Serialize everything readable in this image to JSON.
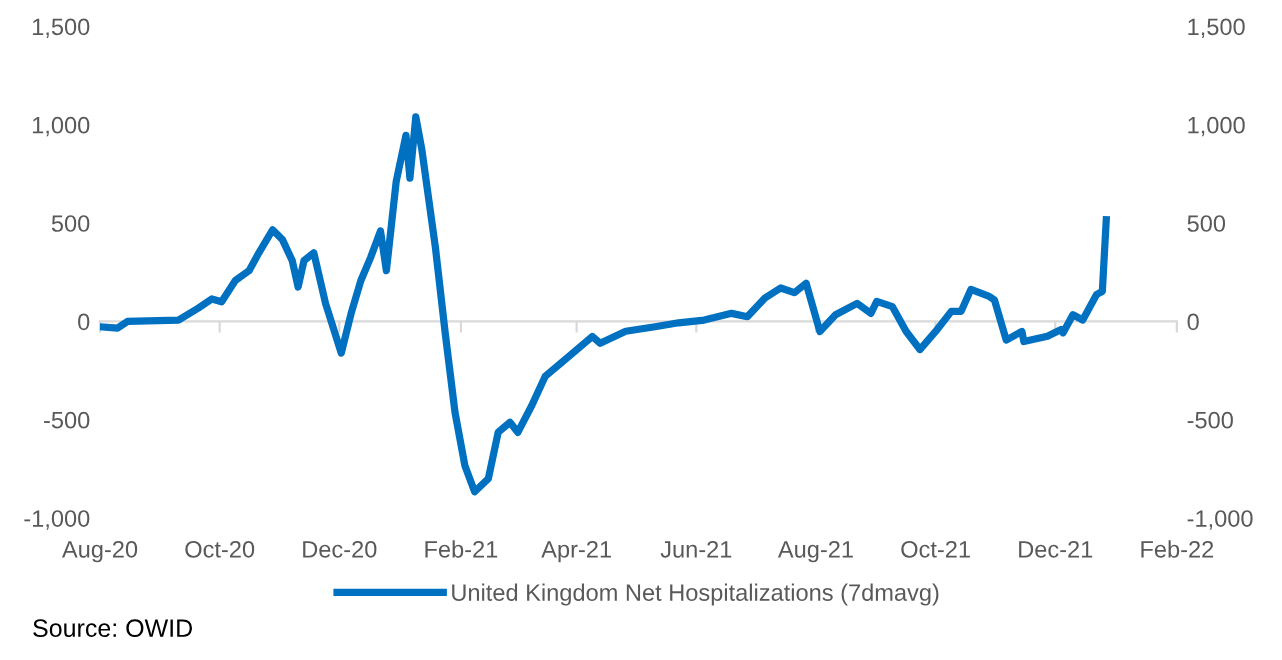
{
  "chart_data": {
    "type": "line",
    "x": [
      "2020-08-01",
      "2020-08-10",
      "2020-08-15",
      "2020-09-10",
      "2020-09-20",
      "2020-09-27",
      "2020-10-02",
      "2020-10-09",
      "2020-10-16",
      "2020-10-21",
      "2020-10-28",
      "2020-11-02",
      "2020-11-07",
      "2020-11-10",
      "2020-11-13",
      "2020-11-18",
      "2020-11-24",
      "2020-12-02",
      "2020-12-07",
      "2020-12-12",
      "2020-12-17",
      "2020-12-22",
      "2020-12-25",
      "2020-12-30",
      "2021-01-04",
      "2021-01-06",
      "2021-01-09",
      "2021-01-12",
      "2021-01-19",
      "2021-01-24",
      "2021-01-29",
      "2021-02-03",
      "2021-02-08",
      "2021-02-15",
      "2021-02-20",
      "2021-02-26",
      "2021-03-02",
      "2021-03-09",
      "2021-03-16",
      "2021-03-26",
      "2021-04-09",
      "2021-04-13",
      "2021-04-26",
      "2021-05-11",
      "2021-05-23",
      "2021-06-05",
      "2021-06-19",
      "2021-06-27",
      "2021-07-06",
      "2021-07-14",
      "2021-07-21",
      "2021-07-27",
      "2021-08-03",
      "2021-08-11",
      "2021-08-22",
      "2021-08-29",
      "2021-09-01",
      "2021-09-09",
      "2021-09-16",
      "2021-09-23",
      "2021-10-01",
      "2021-10-09",
      "2021-10-14",
      "2021-10-19",
      "2021-10-28",
      "2021-10-31",
      "2021-11-06",
      "2021-11-14",
      "2021-11-15",
      "2021-11-27",
      "2021-12-04",
      "2021-12-05",
      "2021-12-10",
      "2021-12-15",
      "2021-12-22",
      "2021-12-25",
      "2021-12-27"
    ],
    "series": [
      {
        "name": "United Kingdom Net Hospitalizations (7dmavg)",
        "color": "#0070c0",
        "values": [
          -27,
          -34,
          0,
          7,
          67,
          114,
          100,
          208,
          258,
          349,
          466,
          416,
          309,
          175,
          309,
          349,
          91,
          -161,
          40,
          208,
          326,
          460,
          258,
          711,
          946,
          728,
          1040,
          879,
          376,
          -60,
          -463,
          -732,
          -866,
          -799,
          -564,
          -513,
          -564,
          -430,
          -279,
          -195,
          -77,
          -111,
          -50,
          -27,
          -7,
          7,
          41,
          24,
          119,
          170,
          146,
          194,
          -51,
          34,
          92,
          41,
          102,
          75,
          -51,
          -143,
          -51,
          51,
          51,
          163,
          129,
          109,
          -95,
          -51,
          -102,
          -75,
          -41,
          -58,
          34,
          7,
          136,
          153,
          517
        ]
      }
    ],
    "xlim": [
      "2020-08-01",
      "2022-02-01"
    ],
    "xticks": [
      {
        "value": "2020-08-01",
        "label": "Aug-20"
      },
      {
        "value": "2020-10-01",
        "label": "Oct-20"
      },
      {
        "value": "2020-12-01",
        "label": "Dec-20"
      },
      {
        "value": "2021-02-01",
        "label": "Feb-21"
      },
      {
        "value": "2021-04-01",
        "label": "Apr-21"
      },
      {
        "value": "2021-06-01",
        "label": "Jun-21"
      },
      {
        "value": "2021-08-01",
        "label": "Aug-21"
      },
      {
        "value": "2021-10-01",
        "label": "Oct-21"
      },
      {
        "value": "2021-12-01",
        "label": "Dec-21"
      },
      {
        "value": "2022-02-01",
        "label": "Feb-22"
      }
    ],
    "ylim": [
      -1000,
      1500
    ],
    "yticks": [
      {
        "value": -1000,
        "label": "-1,000"
      },
      -500,
      0,
      500,
      {
        "value": 1000,
        "label": "1,000"
      },
      {
        "value": 1500,
        "label": "1,500"
      }
    ],
    "y2lim": [
      -1000,
      1500
    ],
    "y2ticks": [
      {
        "value": -1000,
        "label": "-1,000"
      },
      -500,
      0,
      500,
      {
        "value": 1000,
        "label": "1,000"
      },
      {
        "value": 1500,
        "label": "1,500"
      }
    ],
    "legend": "bottom",
    "annotations": [
      "Source: OWID"
    ]
  }
}
